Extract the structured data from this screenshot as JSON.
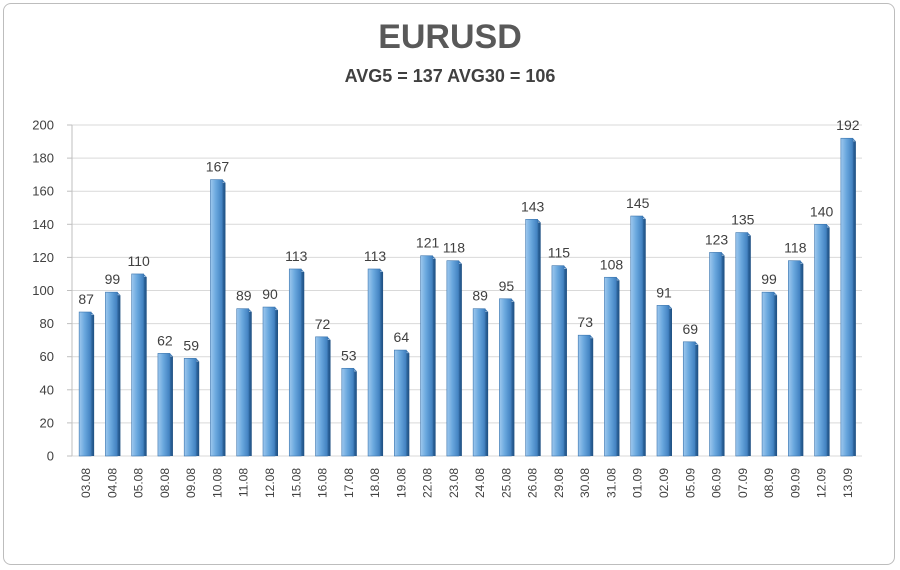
{
  "chart_data": {
    "type": "bar",
    "title": "EURUSD",
    "subtitle": "AVG5 = 137 AVG30 = 106",
    "xlabel": "",
    "ylabel": "",
    "ylim": [
      0,
      200
    ],
    "yticks": [
      0,
      20,
      40,
      60,
      80,
      100,
      120,
      140,
      160,
      180,
      200
    ],
    "grid": true,
    "bar_color": "#5b9bd5",
    "categories": [
      "03.08",
      "04.08",
      "05.08",
      "08.08",
      "09.08",
      "10.08",
      "11.08",
      "12.08",
      "15.08",
      "16.08",
      "17.08",
      "18.08",
      "19.08",
      "22.08",
      "23.08",
      "24.08",
      "25.08",
      "26.08",
      "29.08",
      "30.08",
      "31.08",
      "01.09",
      "02.09",
      "05.09",
      "06.09",
      "07.09",
      "08.09",
      "09.09",
      "12.09",
      "13.09"
    ],
    "values": [
      87,
      99,
      110,
      62,
      59,
      167,
      89,
      90,
      113,
      72,
      53,
      113,
      64,
      121,
      118,
      89,
      95,
      143,
      115,
      73,
      108,
      145,
      91,
      69,
      123,
      135,
      99,
      118,
      140,
      192
    ]
  }
}
